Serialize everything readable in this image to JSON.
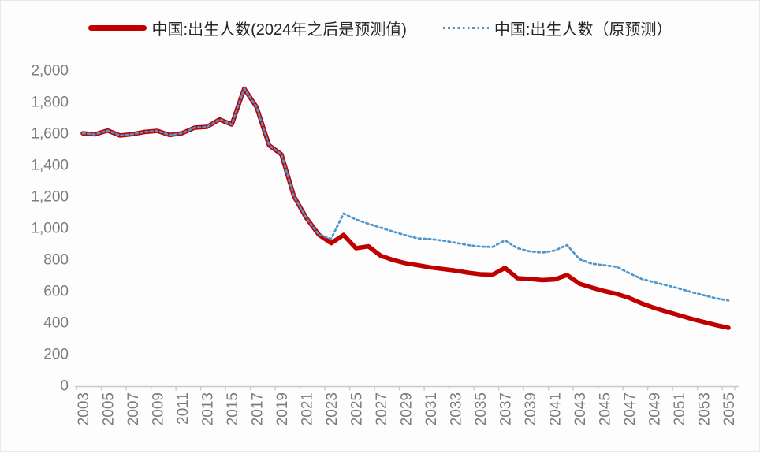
{
  "legend": {
    "series_actual_label": "中国:出生人数(2024年之后是预测值)",
    "series_original_label": "中国:出生人数（原预测）"
  },
  "colors": {
    "actual": "#c00000",
    "forecast": "#4e96cb",
    "axis_text": "#7c7c7c",
    "axis_line": "#c9c9c9",
    "background": "#ffffff"
  },
  "chart_data": {
    "type": "line",
    "title": "",
    "xlabel": "",
    "ylabel": "",
    "unit_hint": "万人",
    "ylim": [
      0,
      2000
    ],
    "ytick_step": 200,
    "yticks": [
      0,
      200,
      400,
      600,
      800,
      1000,
      1200,
      1400,
      1600,
      1800,
      2000
    ],
    "grid": false,
    "legend_position": "top",
    "x": [
      2003,
      2004,
      2005,
      2006,
      2007,
      2008,
      2009,
      2010,
      2011,
      2012,
      2013,
      2014,
      2015,
      2016,
      2017,
      2018,
      2019,
      2020,
      2021,
      2022,
      2023,
      2024,
      2025,
      2026,
      2027,
      2028,
      2029,
      2030,
      2031,
      2032,
      2033,
      2034,
      2035,
      2036,
      2037,
      2038,
      2039,
      2040,
      2041,
      2042,
      2043,
      2044,
      2045,
      2046,
      2047,
      2048,
      2049,
      2050,
      2051,
      2052,
      2053,
      2054,
      2055
    ],
    "xtick_labels": [
      2003,
      2005,
      2007,
      2009,
      2011,
      2013,
      2015,
      2017,
      2019,
      2021,
      2023,
      2025,
      2027,
      2029,
      2031,
      2033,
      2035,
      2037,
      2039,
      2041,
      2043,
      2045,
      2047,
      2049,
      2051,
      2053,
      2055
    ],
    "series": [
      {
        "name": "中国:出生人数(2024年之后是预测值)",
        "color_key": "actual",
        "style": "solid",
        "values": [
          1599,
          1593,
          1617,
          1585,
          1594,
          1608,
          1615,
          1588,
          1600,
          1635,
          1640,
          1687,
          1655,
          1883,
          1765,
          1523,
          1465,
          1200,
          1062,
          956,
          902,
          954,
          870,
          882,
          822,
          795,
          775,
          762,
          748,
          738,
          728,
          715,
          705,
          702,
          745,
          680,
          675,
          668,
          672,
          700,
          645,
          620,
          598,
          580,
          555,
          520,
          492,
          468,
          445,
          422,
          402,
          382,
          365
        ]
      },
      {
        "name": "中国:出生人数（原预测）",
        "color_key": "forecast",
        "style": "dotted",
        "values": [
          1599,
          1593,
          1617,
          1585,
          1594,
          1608,
          1615,
          1588,
          1600,
          1635,
          1640,
          1687,
          1655,
          1883,
          1765,
          1523,
          1465,
          1200,
          1062,
          956,
          930,
          1090,
          1052,
          1025,
          1000,
          975,
          952,
          932,
          928,
          918,
          905,
          890,
          880,
          878,
          920,
          870,
          850,
          842,
          855,
          890,
          800,
          772,
          762,
          752,
          712,
          675,
          655,
          635,
          615,
          592,
          572,
          552,
          538
        ]
      }
    ]
  }
}
